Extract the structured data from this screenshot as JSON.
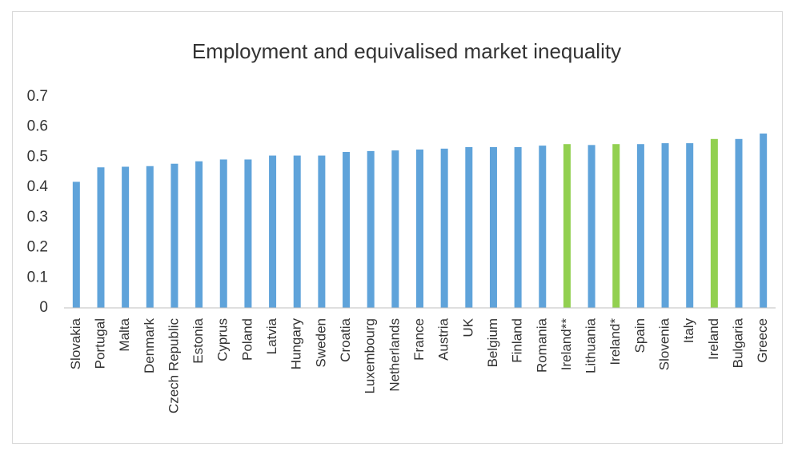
{
  "chart_data": {
    "type": "bar",
    "title": "Employment and equivalised market inequality",
    "categories": [
      "Slovakia",
      "Portugal",
      "Malta",
      "Denmark",
      "Czech Republic",
      "Estonia",
      "Cyprus",
      "Poland",
      "Latvia",
      "Hungary",
      "Sweden",
      "Croatia",
      "Luxembourg",
      "Netherlands",
      "France",
      "Austria",
      "UK",
      "Belgium",
      "Finland",
      "Romania",
      "Ireland**",
      "Lithuania",
      "Ireland*",
      "Spain",
      "Slovenia",
      "Italy",
      "Ireland",
      "Bulgaria",
      "Greece"
    ],
    "values": [
      0.418,
      0.466,
      0.468,
      0.47,
      0.478,
      0.486,
      0.492,
      0.492,
      0.505,
      0.505,
      0.505,
      0.517,
      0.52,
      0.522,
      0.525,
      0.528,
      0.533,
      0.533,
      0.533,
      0.538,
      0.543,
      0.54,
      0.543,
      0.543,
      0.546,
      0.546,
      0.56,
      0.56,
      0.578
    ],
    "colors": [
      "#5fa3da",
      "#5fa3da",
      "#5fa3da",
      "#5fa3da",
      "#5fa3da",
      "#5fa3da",
      "#5fa3da",
      "#5fa3da",
      "#5fa3da",
      "#5fa3da",
      "#5fa3da",
      "#5fa3da",
      "#5fa3da",
      "#5fa3da",
      "#5fa3da",
      "#5fa3da",
      "#5fa3da",
      "#5fa3da",
      "#5fa3da",
      "#5fa3da",
      "#92d050",
      "#5fa3da",
      "#92d050",
      "#5fa3da",
      "#5fa3da",
      "#5fa3da",
      "#92d050",
      "#5fa3da",
      "#5fa3da"
    ],
    "ylim": [
      0,
      0.7
    ],
    "yticks": [
      0,
      0.1,
      0.2,
      0.3,
      0.4,
      0.5,
      0.6,
      0.7
    ],
    "grid": false
  }
}
